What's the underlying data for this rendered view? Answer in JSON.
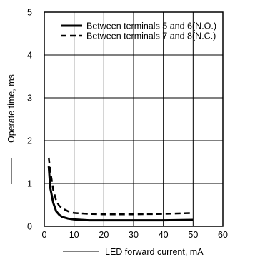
{
  "chart_data": {
    "type": "line",
    "title": "",
    "xlabel": "LED forward current, mA",
    "ylabel": "Operate time, ms",
    "xlim": [
      0,
      60
    ],
    "ylim": [
      0,
      5
    ],
    "xticks": [
      "0",
      "10",
      "20",
      "30",
      "40",
      "50",
      "60"
    ],
    "yticks": [
      "0",
      "1",
      "2",
      "3",
      "4",
      "5"
    ],
    "grid": true,
    "legend_position": "top-right",
    "series": [
      {
        "name": "Between terminals 5 and 6(N.O.)",
        "style": "solid",
        "x": [
          1.5,
          2,
          3,
          4,
          5,
          6,
          8,
          10,
          15,
          20,
          30,
          40,
          50
        ],
        "y": [
          1.4,
          0.9,
          0.55,
          0.35,
          0.27,
          0.22,
          0.18,
          0.16,
          0.14,
          0.14,
          0.14,
          0.14,
          0.15
        ]
      },
      {
        "name": "Between terminals 7 and 8(N.C.)",
        "style": "dashed",
        "x": [
          1.5,
          2,
          3,
          4,
          5,
          6,
          8,
          10,
          15,
          20,
          30,
          40,
          50
        ],
        "y": [
          1.6,
          1.3,
          0.85,
          0.6,
          0.48,
          0.42,
          0.35,
          0.31,
          0.29,
          0.28,
          0.28,
          0.29,
          0.31
        ]
      }
    ]
  }
}
